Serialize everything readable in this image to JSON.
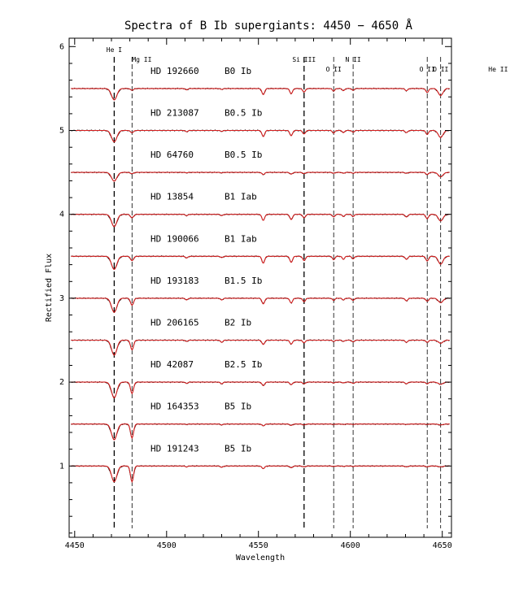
{
  "chart_data": {
    "type": "line",
    "title": "Spectra of B Ib supergiants: 4450 − 4650 Å",
    "xlabel": "Wavelength",
    "ylabel": "Rectified Flux",
    "xlim": [
      4447,
      4655
    ],
    "ylim": [
      0.15,
      6.1
    ],
    "xticks": [
      4450,
      4500,
      4550,
      4600,
      4650
    ],
    "yticks": [
      1,
      2,
      3,
      4,
      5,
      6
    ],
    "grid": false,
    "line_identifications": [
      {
        "label": "He I",
        "wavelength": 4471.5
      },
      {
        "label": "Mg II",
        "wavelength": 4481.2
      },
      {
        "label": "Si III",
        "wavelength": 4574.8
      },
      {
        "label": "O II",
        "wavelength": 4590.9
      },
      {
        "label": "N II",
        "wavelength": 4601.5
      },
      {
        "label": "O II",
        "wavelength": 4641.8
      },
      {
        "label": "O II",
        "wavelength": 4649.1
      },
      {
        "label": "He II",
        "wavelength": 4685.7
      }
    ],
    "series": [
      {
        "name": "HD 192660",
        "spectral_type": "B0 Ib",
        "offset": 5.5
      },
      {
        "name": "HD 213087",
        "spectral_type": "B0.5 Ib",
        "offset": 5.0
      },
      {
        "name": "HD 64760",
        "spectral_type": "B0.5 Ib",
        "offset": 4.5
      },
      {
        "name": "HD 13854",
        "spectral_type": "B1 Iab",
        "offset": 4.0
      },
      {
        "name": "HD 190066",
        "spectral_type": "B1 Iab",
        "offset": 3.5
      },
      {
        "name": "HD 193183",
        "spectral_type": "B1.5 Ib",
        "offset": 3.0
      },
      {
        "name": "HD 206165",
        "spectral_type": "B2 Ib",
        "offset": 2.5
      },
      {
        "name": "HD 42087",
        "spectral_type": "B2.5 Ib",
        "offset": 2.0
      },
      {
        "name": "HD 164353",
        "spectral_type": "B5 Ib",
        "offset": 1.5
      },
      {
        "name": "HD 191243",
        "spectral_type": "B5 Ib",
        "offset": 1.0
      }
    ],
    "colors": {
      "observed": "#000000",
      "model": "#d62020"
    }
  }
}
